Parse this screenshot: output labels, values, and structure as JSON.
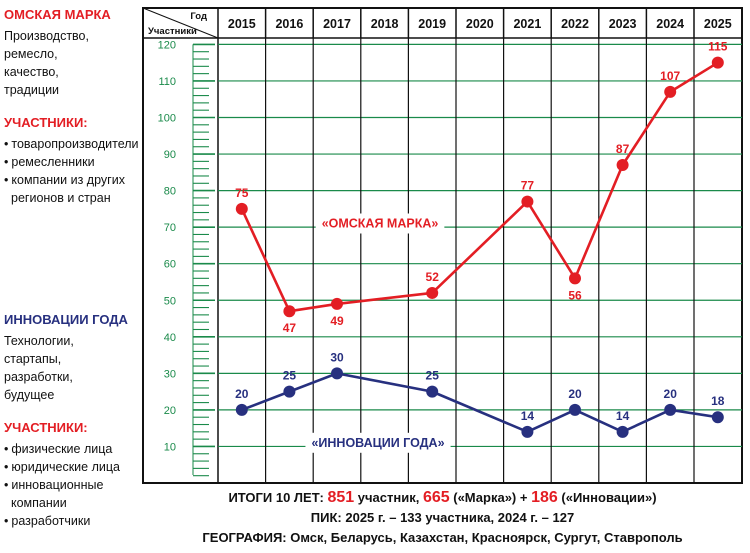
{
  "sidebar": {
    "brand": {
      "title": "ОМСКАЯ МАРКА",
      "desc": [
        "Производство,",
        "ремесло,",
        "качество,",
        "традиции"
      ],
      "participants_title": "УЧАСТНИКИ:",
      "participants": [
        "товаропроизводители",
        "ремесленники",
        "компании из других",
        "регионов и стран"
      ]
    },
    "innov": {
      "title": "ИННОВАЦИИ ГОДА",
      "desc": [
        "Технологии,",
        "стартапы,",
        "разработки,",
        "будущее"
      ],
      "participants_title": "УЧАСТНИКИ:",
      "participants": [
        "физические лица",
        "юридические лица",
        "инновационные",
        "компании",
        "разработчики"
      ]
    }
  },
  "chart_data": {
    "type": "line",
    "header_corner": {
      "top": "Год",
      "bottom": "Участники"
    },
    "x": [
      "2015",
      "2016",
      "2017",
      "2018",
      "2019",
      "2020",
      "2021",
      "2022",
      "2023",
      "2024",
      "2025"
    ],
    "ylim": [
      0,
      120
    ],
    "yticks": [
      10,
      20,
      30,
      40,
      50,
      60,
      70,
      80,
      90,
      100,
      110,
      120
    ],
    "grid": true,
    "series": [
      {
        "name": "«ОМСКАЯ МАРКА»",
        "color": "#e31e24",
        "points": [
          {
            "x": "2015",
            "y": 75
          },
          {
            "x": "2016",
            "y": 47
          },
          {
            "x": "2017",
            "y": 49
          },
          {
            "x": "2019",
            "y": 52
          },
          {
            "x": "2021",
            "y": 77
          },
          {
            "x": "2022",
            "y": 56
          },
          {
            "x": "2023",
            "y": 87
          },
          {
            "x": "2024",
            "y": 107
          },
          {
            "x": "2025",
            "y": 115
          }
        ]
      },
      {
        "name": "«ИННОВАЦИИ ГОДА»",
        "color": "#27307f",
        "points": [
          {
            "x": "2015",
            "y": 20
          },
          {
            "x": "2016",
            "y": 25
          },
          {
            "x": "2017",
            "y": 30
          },
          {
            "x": "2019",
            "y": 25
          },
          {
            "x": "2021",
            "y": 14
          },
          {
            "x": "2022",
            "y": 20
          },
          {
            "x": "2023",
            "y": 14
          },
          {
            "x": "2024",
            "y": 20
          },
          {
            "x": "2025",
            "y": 18
          }
        ]
      }
    ]
  },
  "footer": {
    "line1_prefix": "ИТОГИ 10 ЛЕТ: ",
    "total": "851",
    "line1_mid1": " участник, ",
    "brand_total": "665",
    "line1_mid2": " («Марка») + ",
    "innov_total": "186",
    "line1_suffix": " («Инновации»)",
    "line2": "ПИК: 2025 г. – 133 участника, 2024 г. – 127",
    "line3": "ГЕОГРАФИЯ: Омск, Беларусь, Казахстан, Красноярск, Сургут, Ставрополь"
  },
  "colors": {
    "brand": "#e31e24",
    "innov": "#27307f",
    "grid": "#1a8a4a",
    "ruler": "#1a8a4a"
  }
}
